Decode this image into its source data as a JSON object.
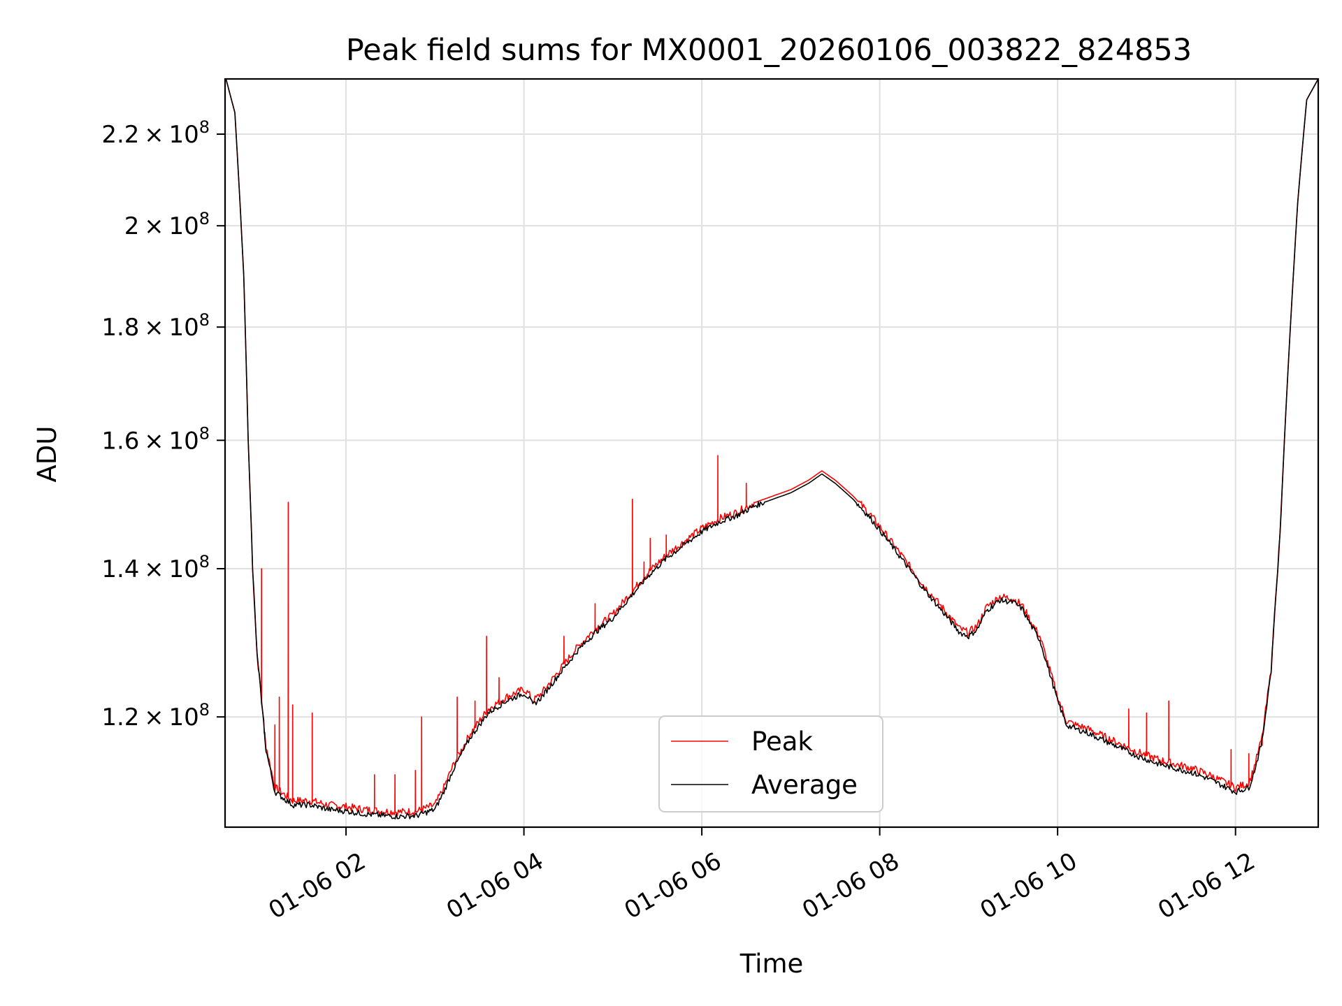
{
  "chart_data": {
    "type": "line",
    "title": "Peak field sums for MX0001_20260106_003822_824853",
    "xlabel": "Time",
    "ylabel": "ADU",
    "yscale": "log",
    "xlim": [
      0.64,
      12.93
    ],
    "ylim": [
      107000000,
      233000000
    ],
    "grid": true,
    "x_ticks": [
      {
        "value": 2,
        "label": "01-06 02"
      },
      {
        "value": 4,
        "label": "01-06 04"
      },
      {
        "value": 6,
        "label": "01-06 06"
      },
      {
        "value": 8,
        "label": "01-06 08"
      },
      {
        "value": 10,
        "label": "01-06 10"
      },
      {
        "value": 12,
        "label": "01-06 12"
      }
    ],
    "y_ticks": [
      {
        "value": 120000000,
        "mantissa": "1.2",
        "exponent": "8"
      },
      {
        "value": 140000000,
        "mantissa": "1.4",
        "exponent": "8"
      },
      {
        "value": 160000000,
        "mantissa": "1.6",
        "exponent": "8"
      },
      {
        "value": 180000000,
        "mantissa": "1.8",
        "exponent": "8"
      },
      {
        "value": 200000000,
        "mantissa": "2",
        "exponent": "8"
      },
      {
        "value": 220000000,
        "mantissa": "2.2",
        "exponent": "8"
      }
    ],
    "legend": {
      "position": "lower-center",
      "entries": [
        "Peak",
        "Average"
      ]
    },
    "series": [
      {
        "name": "Average",
        "color": "#000000",
        "x": [
          0.65,
          0.75,
          0.85,
          0.9,
          0.95,
          1.0,
          1.1,
          1.2,
          1.4,
          1.6,
          1.8,
          2.0,
          2.2,
          2.4,
          2.6,
          2.8,
          3.0,
          3.1,
          3.2,
          3.4,
          3.6,
          3.8,
          4.0,
          4.05,
          4.1,
          4.2,
          4.4,
          4.6,
          4.8,
          5.0,
          5.2,
          5.4,
          5.6,
          5.8,
          6.0,
          6.2,
          6.4,
          6.6,
          6.8,
          7.0,
          7.2,
          7.35,
          7.5,
          7.7,
          7.9,
          8.1,
          8.3,
          8.5,
          8.7,
          8.9,
          9.0,
          9.1,
          9.2,
          9.35,
          9.5,
          9.6,
          9.7,
          9.8,
          9.9,
          10.0,
          10.1,
          10.2,
          10.3,
          10.5,
          10.7,
          10.9,
          11.1,
          11.3,
          11.5,
          11.7,
          11.9,
          12.0,
          12.15,
          12.2,
          12.3,
          12.4,
          12.5,
          12.6,
          12.7,
          12.8,
          12.93
        ],
        "values": [
          233000000,
          225000000,
          190000000,
          160000000,
          140000000,
          128000000,
          116000000,
          111000000,
          109500000,
          109500000,
          109000000,
          108800000,
          108500000,
          108300000,
          108200000,
          108300000,
          109000000,
          111000000,
          113500000,
          117500000,
          120500000,
          122000000,
          123000000,
          122500000,
          121500000,
          122500000,
          125500000,
          128500000,
          131000000,
          133000000,
          136000000,
          139000000,
          141500000,
          143500000,
          145500000,
          147000000,
          148000000,
          149500000,
          150500000,
          151500000,
          153000000,
          154500000,
          153000000,
          150500000,
          147500000,
          144000000,
          140500000,
          137000000,
          134000000,
          131000000,
          130500000,
          131500000,
          134000000,
          135500000,
          135200000,
          134300000,
          132000000,
          130000000,
          126000000,
          122000000,
          119000000,
          118500000,
          118200000,
          117200000,
          116200000,
          115200000,
          114400000,
          113800000,
          113300000,
          112500000,
          111500000,
          111000000,
          111500000,
          113000000,
          117000000,
          126000000,
          145000000,
          175000000,
          205000000,
          228000000,
          233000000
        ]
      },
      {
        "name": "Peak",
        "color": "#ff0000",
        "x": [
          0.65,
          0.75,
          0.85,
          0.9,
          0.95,
          1.0,
          1.1,
          1.2,
          1.4,
          1.6,
          1.8,
          2.0,
          2.2,
          2.4,
          2.6,
          2.8,
          3.0,
          3.1,
          3.2,
          3.4,
          3.6,
          3.8,
          4.0,
          4.05,
          4.1,
          4.2,
          4.4,
          4.6,
          4.8,
          5.0,
          5.2,
          5.4,
          5.6,
          5.8,
          6.0,
          6.2,
          6.4,
          6.6,
          6.8,
          7.0,
          7.2,
          7.35,
          7.5,
          7.7,
          7.9,
          8.1,
          8.3,
          8.5,
          8.7,
          8.9,
          9.0,
          9.1,
          9.2,
          9.35,
          9.5,
          9.6,
          9.7,
          9.8,
          9.9,
          10.0,
          10.1,
          10.2,
          10.3,
          10.5,
          10.7,
          10.9,
          11.1,
          11.3,
          11.5,
          11.7,
          11.9,
          12.0,
          12.15,
          12.2,
          12.3,
          12.4,
          12.5,
          12.6,
          12.7,
          12.8,
          12.93
        ],
        "values": [
          233000000,
          225000000,
          190000000,
          160000000,
          140000000,
          128000000,
          116500000,
          111500000,
          110000000,
          110000000,
          109500000,
          109300000,
          109000000,
          108800000,
          108700000,
          108800000,
          109500000,
          111500000,
          114000000,
          118000000,
          121000000,
          122500000,
          123500000,
          123000000,
          122000000,
          123000000,
          126000000,
          129000000,
          131500000,
          133500000,
          136500000,
          139500000,
          142000000,
          144000000,
          146000000,
          147500000,
          148500000,
          150000000,
          151000000,
          152000000,
          153500000,
          155000000,
          153500000,
          151000000,
          148000000,
          144500000,
          141000000,
          137500000,
          134500000,
          131500000,
          131000000,
          132000000,
          134500000,
          136000000,
          135700000,
          134800000,
          132500000,
          130500000,
          126500000,
          122500000,
          119500000,
          119000000,
          118700000,
          117700000,
          116700000,
          115700000,
          114900000,
          114300000,
          113800000,
          113000000,
          112000000,
          111500000,
          112000000,
          113500000,
          117500000,
          126000000,
          145000000,
          175000000,
          205000000,
          228000000,
          233000000
        ]
      }
    ],
    "spikes": [
      {
        "x": 1.05,
        "value": 140000000
      },
      {
        "x": 1.08,
        "value": 118000000
      },
      {
        "x": 1.2,
        "value": 119000000
      },
      {
        "x": 1.25,
        "value": 122500000
      },
      {
        "x": 1.35,
        "value": 150000000
      },
      {
        "x": 1.4,
        "value": 121500000
      },
      {
        "x": 1.62,
        "value": 120500000
      },
      {
        "x": 2.32,
        "value": 113000000
      },
      {
        "x": 2.55,
        "value": 113000000
      },
      {
        "x": 2.78,
        "value": 113500000
      },
      {
        "x": 2.85,
        "value": 120000000
      },
      {
        "x": 3.25,
        "value": 122500000
      },
      {
        "x": 3.45,
        "value": 122000000
      },
      {
        "x": 3.58,
        "value": 130500000
      },
      {
        "x": 3.72,
        "value": 125000000
      },
      {
        "x": 4.45,
        "value": 130500000
      },
      {
        "x": 4.8,
        "value": 135000000
      },
      {
        "x": 5.22,
        "value": 150500000
      },
      {
        "x": 5.35,
        "value": 141000000
      },
      {
        "x": 5.42,
        "value": 144500000
      },
      {
        "x": 5.6,
        "value": 145000000
      },
      {
        "x": 6.18,
        "value": 157500000
      },
      {
        "x": 6.5,
        "value": 153000000
      },
      {
        "x": 10.8,
        "value": 121000000
      },
      {
        "x": 11.0,
        "value": 120500000
      },
      {
        "x": 11.25,
        "value": 122000000
      },
      {
        "x": 11.95,
        "value": 116000000
      },
      {
        "x": 12.15,
        "value": 115500000
      },
      {
        "x": 12.3,
        "value": 116500000
      }
    ]
  }
}
